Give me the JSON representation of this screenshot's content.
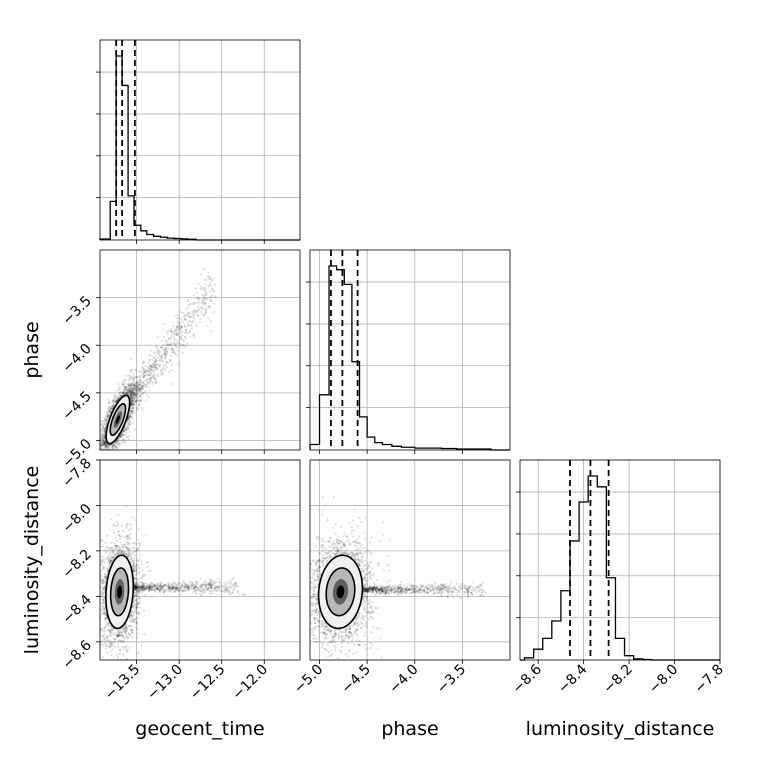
{
  "chart_data": {
    "type": "corner",
    "parameters": [
      "geocent_time",
      "phase",
      "luminosity_distance"
    ],
    "axis_labels": {
      "geocent_time": "geocent_time",
      "phase": "phase",
      "luminosity_distance": "luminosity_distance"
    },
    "ranges": {
      "geocent_time": [
        -13.93,
        -11.58
      ],
      "phase": [
        -5.1,
        -3.0
      ],
      "luminosity_distance": [
        -8.68,
        -7.8
      ]
    },
    "ticks": {
      "geocent_time": [
        {
          "value": -13.5,
          "label": "−13.5"
        },
        {
          "value": -13.0,
          "label": "−13.0"
        },
        {
          "value": -12.5,
          "label": "−12.5"
        },
        {
          "value": -12.0,
          "label": "−12.0"
        }
      ],
      "phase": [
        {
          "value": -5.0,
          "label": "−5.0"
        },
        {
          "value": -4.5,
          "label": "−4.5"
        },
        {
          "value": -4.0,
          "label": "−4.0"
        },
        {
          "value": -3.5,
          "label": "−3.5"
        }
      ],
      "luminosity_distance": [
        {
          "value": -8.6,
          "label": "−8.6"
        },
        {
          "value": -8.4,
          "label": "−8.4"
        },
        {
          "value": -8.2,
          "label": "−8.2"
        },
        {
          "value": -8.0,
          "label": "−8.0"
        },
        {
          "value": -7.8,
          "label": "−7.8"
        }
      ]
    },
    "quantiles": {
      "geocent_time": [
        -13.74,
        -13.67,
        -13.52
      ],
      "phase": [
        -4.88,
        -4.76,
        -4.6
      ],
      "luminosity_distance": [
        -8.46,
        -8.37,
        -8.29
      ]
    },
    "histograms": {
      "geocent_time": {
        "edges": [
          -13.93,
          -13.81,
          -13.74,
          -13.67,
          -13.6,
          -13.53,
          -13.45,
          -13.38,
          -13.3,
          -13.22,
          -13.14,
          -13.06,
          -12.98,
          -12.9,
          -12.8,
          -12.7
        ],
        "counts": [
          0.005,
          0.21,
          1.0,
          0.84,
          0.24,
          0.08,
          0.05,
          0.03,
          0.02,
          0.015,
          0.01,
          0.008,
          0.006,
          0.004,
          0.0
        ]
      },
      "phase": {
        "edges": [
          -5.1,
          -5.0,
          -4.9,
          -4.82,
          -4.74,
          -4.66,
          -4.58,
          -4.5,
          -4.42,
          -4.34,
          -4.24,
          -4.14,
          -4.0,
          -3.86,
          -3.72,
          -3.56,
          -3.2
        ],
        "counts": [
          0.03,
          0.3,
          1.0,
          0.98,
          0.9,
          0.48,
          0.18,
          0.07,
          0.04,
          0.03,
          0.02,
          0.015,
          0.01,
          0.01,
          0.008,
          0.005
        ]
      },
      "luminosity_distance": {
        "edges": [
          -8.66,
          -8.62,
          -8.58,
          -8.54,
          -8.5,
          -8.46,
          -8.42,
          -8.38,
          -8.34,
          -8.3,
          -8.26,
          -8.22,
          -8.18,
          -8.14,
          -8.1
        ],
        "counts": [
          0.01,
          0.05,
          0.1,
          0.18,
          0.32,
          0.55,
          0.73,
          0.85,
          0.8,
          0.38,
          0.1,
          0.02,
          0.005,
          0.002
        ]
      }
    },
    "scatter_2d": {
      "phase_vs_geocent_time": {
        "core": {
          "x": -13.72,
          "y": -4.78,
          "sx": 0.06,
          "sy": 0.11,
          "rho": 0.7
        },
        "tail": {
          "x0": -13.6,
          "y0": -4.6,
          "x1": -12.6,
          "y1": -3.4,
          "spread": 0.35
        }
      },
      "luminosity_distance_vs_geocent_time": {
        "core": {
          "x": -13.7,
          "y": -8.38,
          "sx": 0.07,
          "sy": 0.07,
          "rho": 0.15
        },
        "tail": {
          "x0": -13.6,
          "y0": -8.36,
          "x1": -12.3,
          "y1": -8.36,
          "spread": 0.1
        }
      },
      "luminosity_distance_vs_phase": {
        "core": {
          "x": -4.78,
          "y": -8.38,
          "sx": 0.1,
          "sy": 0.07,
          "rho": 0.1
        },
        "tail": {
          "x0": -4.6,
          "y0": -8.37,
          "x1": -3.3,
          "y1": -8.37,
          "spread": 0.1
        }
      }
    },
    "colors": {
      "hist": "#000000",
      "contour": "#000000",
      "points": "#000000",
      "grid": "#b0b0b0"
    },
    "grid": true
  }
}
